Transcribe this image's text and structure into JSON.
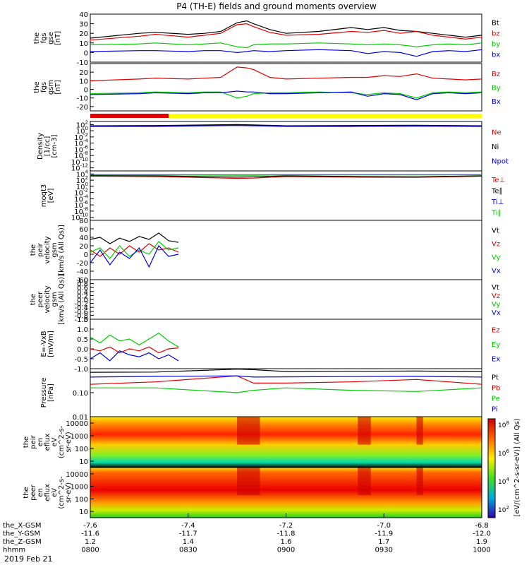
{
  "title": "P4 (TH-E) fields and ground moments overview",
  "date": "2019 Feb 21",
  "colors": {
    "black": "#000000",
    "red": "#e00000",
    "green": "#00cc00",
    "blue": "#0000e0",
    "yellow": "#ffff00",
    "panel_border": "#000000"
  },
  "chart_data": [
    {
      "type": "line",
      "panel": "fgs_gse",
      "ylabel_lines": [
        "the",
        "fgs",
        "gse",
        "[nT]"
      ],
      "ylim": [
        -10,
        40
      ],
      "yticks": [
        "40",
        "30",
        "20",
        "10",
        "0",
        "-10"
      ],
      "legend": [
        "Bt",
        "bz",
        "by",
        "bx"
      ],
      "series": [
        {
          "name": "Bt",
          "color": "#000000",
          "x": [
            0,
            15,
            20,
            30,
            35,
            40,
            45,
            48,
            50,
            55,
            60,
            70,
            80,
            85,
            90,
            95,
            100,
            105,
            110,
            115,
            120
          ],
          "y": [
            15,
            20,
            21,
            19,
            20,
            22,
            31,
            33,
            30,
            24,
            20,
            22,
            26,
            24,
            26,
            23,
            22,
            20,
            18,
            16,
            18
          ]
        },
        {
          "name": "bz",
          "color": "#e00000",
          "x": [
            0,
            15,
            20,
            30,
            35,
            40,
            45,
            48,
            50,
            55,
            60,
            70,
            80,
            85,
            90,
            95,
            100,
            105,
            110,
            115,
            120
          ],
          "y": [
            13,
            17,
            19,
            16,
            18,
            20,
            29,
            30,
            27,
            21,
            18,
            19,
            22,
            21,
            23,
            20,
            22,
            18,
            16,
            14,
            16
          ]
        },
        {
          "name": "by",
          "color": "#00cc00",
          "x": [
            0,
            15,
            20,
            30,
            35,
            40,
            45,
            48,
            50,
            55,
            60,
            70,
            80,
            85,
            90,
            95,
            100,
            105,
            110,
            115,
            120
          ],
          "y": [
            8,
            9,
            10,
            8,
            9,
            10,
            6,
            5,
            8,
            9,
            9,
            10,
            9,
            8,
            9,
            8,
            6,
            8,
            9,
            8,
            10
          ]
        },
        {
          "name": "bx",
          "color": "#0000e0",
          "x": [
            0,
            15,
            20,
            30,
            35,
            40,
            45,
            48,
            50,
            55,
            60,
            70,
            80,
            85,
            90,
            95,
            100,
            105,
            110,
            115,
            120
          ],
          "y": [
            1,
            2,
            2,
            1,
            2,
            2,
            0,
            1,
            2,
            1,
            2,
            3,
            2,
            -1,
            1,
            0,
            -4,
            1,
            2,
            1,
            3
          ]
        }
      ]
    },
    {
      "type": "line",
      "panel": "fgs_gsm",
      "ylabel_lines": [
        "the",
        "fgs",
        "gsm",
        "[nT]"
      ],
      "ylim": [
        -25,
        30
      ],
      "yticks": [
        "20",
        "10",
        "0",
        "-10",
        "-20"
      ],
      "legend": [
        "Bz",
        "By",
        "Bx"
      ],
      "series": [
        {
          "name": "Bz",
          "color": "#e00000",
          "x": [
            0,
            15,
            20,
            30,
            35,
            40,
            45,
            48,
            50,
            55,
            60,
            70,
            80,
            85,
            90,
            95,
            100,
            105,
            110,
            115,
            120
          ],
          "y": [
            10,
            12,
            13,
            12,
            13,
            14,
            26,
            25,
            23,
            14,
            12,
            13,
            14,
            14,
            16,
            15,
            18,
            13,
            12,
            11,
            12
          ]
        },
        {
          "name": "By",
          "color": "#00cc00",
          "x": [
            0,
            15,
            20,
            30,
            35,
            40,
            45,
            48,
            50,
            55,
            60,
            70,
            80,
            85,
            90,
            95,
            100,
            105,
            110,
            115,
            120
          ],
          "y": [
            -5,
            -4,
            -3,
            -4,
            -3,
            -3,
            -10,
            -8,
            -5,
            -4,
            -4,
            -3,
            -4,
            -6,
            -4,
            -5,
            -10,
            -4,
            -3,
            -4,
            -3
          ]
        },
        {
          "name": "Bx",
          "color": "#0000e0",
          "x": [
            0,
            15,
            20,
            30,
            35,
            40,
            45,
            48,
            50,
            55,
            60,
            70,
            80,
            85,
            90,
            95,
            100,
            105,
            110,
            115,
            120
          ],
          "y": [
            -6,
            -5,
            -4,
            -5,
            -4,
            -4,
            -2,
            -3,
            -3,
            -5,
            -5,
            -4,
            -3,
            -8,
            -5,
            -6,
            -12,
            -5,
            -4,
            -5,
            -4
          ]
        }
      ]
    },
    {
      "type": "line",
      "panel": "density",
      "ylabel_lines": [
        "Density",
        "[1/cc]",
        "[cm-3]"
      ],
      "yscale": "log",
      "ylim_exp": [
        -13,
        3
      ],
      "yticks_exp": [
        2,
        0,
        -2,
        -4,
        -6,
        -8,
        -10,
        -12
      ],
      "legend": [
        "Ne",
        "Ni",
        "Npot"
      ],
      "series": [
        {
          "name": "Ne",
          "color": "#e00000",
          "x": [
            0,
            20,
            45,
            50,
            60,
            80,
            100,
            120
          ],
          "y_exp": [
            1.5,
            1.6,
            1.9,
            1.8,
            1.5,
            1.6,
            1.7,
            1.5
          ]
        },
        {
          "name": "Ni",
          "color": "#000000",
          "x": [
            0,
            20,
            45,
            50,
            60,
            80,
            100,
            120
          ],
          "y_exp": [
            1.6,
            1.7,
            2.0,
            1.9,
            1.6,
            1.7,
            1.8,
            1.6
          ]
        },
        {
          "name": "Npot",
          "color": "#0000e0",
          "x": [
            0,
            20,
            45,
            50,
            60,
            80,
            100,
            120
          ],
          "y_exp": [
            1.4,
            1.4,
            1.7,
            1.6,
            1.4,
            1.4,
            1.5,
            1.4
          ]
        }
      ]
    },
    {
      "type": "line",
      "panel": "temperature",
      "ylabel_lines": [
        "moqt3",
        "[eV]"
      ],
      "yscale": "log",
      "ylim_exp": [
        -11,
        5
      ],
      "yticks_exp": [
        4,
        2,
        0,
        -2,
        -4,
        -6,
        -8,
        -10
      ],
      "legend": [
        "Te⊥",
        "Te∥",
        "Ti⊥",
        "Ti∥"
      ],
      "series": [
        {
          "name": "Te⊥",
          "color": "#e00000",
          "x": [
            0,
            20,
            45,
            50,
            60,
            80,
            100,
            120
          ],
          "y_exp": [
            3.3,
            3.2,
            2.6,
            2.7,
            3.2,
            3.0,
            2.9,
            3.3
          ]
        },
        {
          "name": "Te∥",
          "color": "#000000",
          "x": [
            0,
            20,
            45,
            50,
            60,
            80,
            100,
            120
          ],
          "y_exp": [
            3.5,
            3.4,
            3.0,
            3.1,
            3.4,
            3.2,
            3.1,
            3.4
          ]
        },
        {
          "name": "Ti⊥",
          "color": "#0000e0",
          "x": [
            0,
            20,
            45,
            50,
            60,
            80,
            100,
            120
          ],
          "y_exp": [
            3.8,
            3.8,
            3.7,
            3.7,
            3.8,
            3.8,
            3.8,
            3.8
          ]
        },
        {
          "name": "Ti∥",
          "color": "#00cc00",
          "x": [
            0,
            20,
            45,
            50,
            60,
            80,
            100,
            120
          ],
          "y_exp": [
            3.7,
            3.7,
            3.6,
            3.6,
            3.7,
            3.7,
            3.7,
            3.7
          ]
        }
      ]
    },
    {
      "type": "line",
      "panel": "peir_velocity",
      "ylabel_lines": [
        "the",
        "peir",
        "velocity",
        "gsm",
        "[km/s (All Qs)]"
      ],
      "ylim": [
        -60,
        80
      ],
      "yticks": [
        "80",
        "60",
        "40",
        "20",
        "0",
        "-20",
        "-40",
        "-60"
      ],
      "legend": [
        "Vt",
        "Vz",
        "Vy",
        "Vx"
      ],
      "series": [
        {
          "name": "Vt",
          "color": "#000000",
          "x": [
            0,
            3,
            6,
            9,
            12,
            15,
            18,
            21,
            24,
            27
          ],
          "y": [
            35,
            40,
            25,
            38,
            30,
            42,
            35,
            50,
            32,
            28
          ]
        },
        {
          "name": "Vz",
          "color": "#e00000",
          "x": [
            0,
            3,
            6,
            9,
            12,
            15,
            18,
            21,
            24,
            27
          ],
          "y": [
            10,
            -5,
            15,
            0,
            20,
            5,
            25,
            10,
            15,
            5
          ]
        },
        {
          "name": "Vy",
          "color": "#00cc00",
          "x": [
            0,
            3,
            6,
            9,
            12,
            15,
            18,
            21,
            24,
            27
          ],
          "y": [
            5,
            15,
            -10,
            20,
            -5,
            10,
            0,
            30,
            10,
            15
          ]
        },
        {
          "name": "Vx",
          "color": "#0000e0",
          "x": [
            0,
            3,
            6,
            9,
            12,
            15,
            18,
            21,
            24,
            27
          ],
          "y": [
            -20,
            10,
            -25,
            5,
            -10,
            15,
            -30,
            20,
            -5,
            0
          ]
        }
      ]
    },
    {
      "type": "line",
      "panel": "peer_velocity",
      "ylabel_lines": [
        "the",
        "peer",
        "velocity",
        "gsm",
        "[km/s (All Qs)]"
      ],
      "ylim": [
        -1,
        1
      ],
      "yticks": [
        "1.0",
        "0.8",
        "0.6",
        "0.4",
        "0.2",
        "0.0",
        "-0.2",
        "-0.4",
        "-0.6",
        "-0.8",
        "-1.0"
      ],
      "legend": [
        "Vt",
        "Vz",
        "Vy",
        "Vx"
      ],
      "series": []
    },
    {
      "type": "line",
      "panel": "efield",
      "ylabel_lines": [
        "E=-VxB",
        "[mV/m]"
      ],
      "ylim": [
        -1,
        1.5
      ],
      "yticks": [
        "1.5",
        "1.0",
        "0.5",
        "0.0",
        "-0.5",
        "-1.0"
      ],
      "legend": [
        "Ez",
        "Ey",
        "Ex"
      ],
      "series": [
        {
          "name": "Ez",
          "color": "#e00000",
          "x": [
            0,
            3,
            6,
            9,
            12,
            15,
            18,
            21,
            24,
            27
          ],
          "y": [
            0.0,
            -0.1,
            0.1,
            -0.2,
            0.0,
            -0.1,
            0.1,
            -0.2,
            0.0,
            0.05
          ]
        },
        {
          "name": "Ey",
          "color": "#00cc00",
          "x": [
            0,
            3,
            6,
            9,
            12,
            15,
            18,
            21,
            24,
            27
          ],
          "y": [
            0.6,
            0.3,
            0.7,
            0.4,
            0.5,
            0.2,
            0.5,
            0.8,
            0.4,
            0.1
          ]
        },
        {
          "name": "Ex",
          "color": "#0000e0",
          "x": [
            0,
            3,
            6,
            9,
            12,
            15,
            18,
            21,
            24,
            27
          ],
          "y": [
            -0.5,
            -0.2,
            -0.6,
            -0.1,
            -0.3,
            -0.4,
            -0.2,
            -0.5,
            -0.3,
            -0.6
          ]
        }
      ]
    },
    {
      "type": "line",
      "panel": "pressure",
      "ylabel_lines": [
        "Pressure",
        "[nPa]"
      ],
      "yscale": "log",
      "ylim_exp": [
        -2,
        0
      ],
      "yticks": [
        "0.10",
        "0.01"
      ],
      "yticks_exp": [
        -1,
        -2
      ],
      "legend": [
        "Pt",
        "Pb",
        "Pe",
        "Pi"
      ],
      "series": [
        {
          "name": "Pt",
          "color": "#000000",
          "x": [
            0,
            20,
            45,
            50,
            60,
            80,
            100,
            120
          ],
          "y_exp": [
            -0.15,
            -0.14,
            -0.02,
            -0.04,
            -0.12,
            -0.11,
            -0.1,
            -0.12
          ]
        },
        {
          "name": "Pb",
          "color": "#e00000",
          "x": [
            0,
            20,
            45,
            50,
            60,
            80,
            100,
            120
          ],
          "y_exp": [
            -0.65,
            -0.55,
            -0.3,
            -0.6,
            -0.6,
            -0.55,
            -0.45,
            -0.65
          ]
        },
        {
          "name": "Pe",
          "color": "#00cc00",
          "x": [
            0,
            20,
            45,
            50,
            60,
            80,
            100,
            120
          ],
          "y_exp": [
            -0.8,
            -0.8,
            -1.0,
            -0.9,
            -0.8,
            -0.9,
            -0.95,
            -0.8
          ]
        },
        {
          "name": "Pi",
          "color": "#0000e0",
          "x": [
            0,
            20,
            45,
            50,
            60,
            80,
            100,
            120
          ],
          "y_exp": [
            -0.35,
            -0.32,
            -0.3,
            -0.35,
            -0.34,
            -0.33,
            -0.32,
            -0.35
          ]
        }
      ]
    },
    {
      "type": "heatmap",
      "panel": "peir_en_eflux",
      "ylabel_lines": [
        "the",
        "peir",
        "en",
        "eflux",
        "eV",
        "(cm^2-s-",
        "sr-eV)"
      ],
      "yticks": [
        "10000",
        "1000",
        "100",
        "10"
      ]
    },
    {
      "type": "heatmap",
      "panel": "peer_en_eflux",
      "ylabel_lines": [
        "the",
        "peer",
        "en",
        "eflux",
        "eV",
        "(cm^2-s-",
        "sr-eV)"
      ],
      "yticks": [
        "10000",
        "1000",
        "100",
        "10"
      ]
    }
  ],
  "colorbar": {
    "label": "[eV/(cm^2-s-sr-eV)] (All Qs)",
    "ticks": [
      "10^8",
      "10^6",
      "10^4",
      "10^2"
    ]
  },
  "x_axis": {
    "rows": [
      {
        "label": "the_X-GSM",
        "values": [
          "-7.6",
          "-7.4",
          "-7.2",
          "-7.0",
          "-6.8"
        ]
      },
      {
        "label": "the_Y-GSM",
        "values": [
          "-11.6",
          "-11.7",
          "-11.8",
          "-11.9",
          "-12.0"
        ]
      },
      {
        "label": "the_Z-GSM",
        "values": [
          "1.2",
          "1.4",
          "1.6",
          "1.7",
          "1.9"
        ]
      },
      {
        "label": "hhmm",
        "values": [
          "0800",
          "0830",
          "0900",
          "0930",
          "1000"
        ]
      }
    ]
  },
  "mode_bar": {
    "red_fraction": 0.2,
    "note": "fast/slow survey bar"
  }
}
